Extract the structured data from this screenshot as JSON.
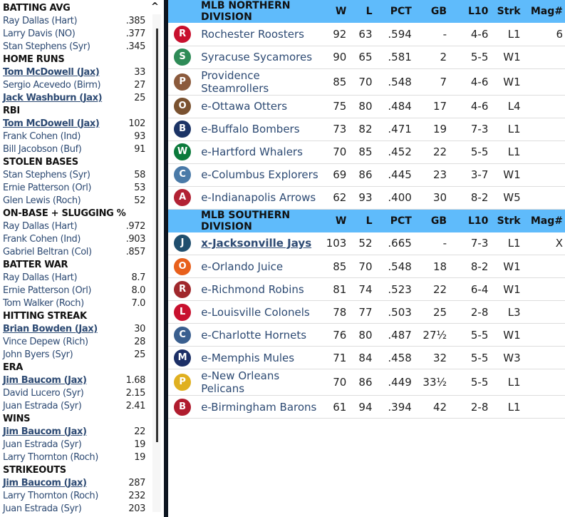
{
  "leaders": [
    {
      "category": "BATTING AVG",
      "rows": [
        {
          "name": "Ray Dallas (Hart)",
          "value": ".385"
        },
        {
          "name": "Larry Davis (NO)",
          "value": ".377"
        },
        {
          "name": "Stan Stephens (Syr)",
          "value": ".345"
        }
      ]
    },
    {
      "category": "HOME RUNS",
      "rows": [
        {
          "name": "Tom McDowell (Jax)",
          "value": "33",
          "link": true
        },
        {
          "name": "Sergio Acevedo (Birm)",
          "value": "27"
        },
        {
          "name": "Jack Washburn (Jax)",
          "value": "25",
          "link": true
        }
      ]
    },
    {
      "category": "RBI",
      "rows": [
        {
          "name": "Tom McDowell (Jax)",
          "value": "102",
          "link": true
        },
        {
          "name": "Frank Cohen (Ind)",
          "value": "93"
        },
        {
          "name": "Bill Jacobson (Buf)",
          "value": "91"
        }
      ]
    },
    {
      "category": "STOLEN BASES",
      "rows": [
        {
          "name": "Stan Stephens (Syr)",
          "value": "58"
        },
        {
          "name": "Ernie Patterson (Orl)",
          "value": "53"
        },
        {
          "name": "Glen Lewis (Roch)",
          "value": "52"
        }
      ]
    },
    {
      "category": "ON-BASE + SLUGGING %",
      "rows": [
        {
          "name": "Ray Dallas (Hart)",
          "value": ".972"
        },
        {
          "name": "Frank Cohen (Ind)",
          "value": ".903"
        },
        {
          "name": "Gabriel Beltran (Col)",
          "value": ".857"
        }
      ]
    },
    {
      "category": "BATTER WAR",
      "rows": [
        {
          "name": "Ray Dallas (Hart)",
          "value": "8.7"
        },
        {
          "name": "Ernie Patterson (Orl)",
          "value": "8.0"
        },
        {
          "name": "Tom Walker (Roch)",
          "value": "7.0"
        }
      ]
    },
    {
      "category": "HITTING STREAK",
      "rows": [
        {
          "name": "Brian Bowden (Jax)",
          "value": "30",
          "link": true
        },
        {
          "name": "Vince Depew (Rich)",
          "value": "28"
        },
        {
          "name": "John Byers (Syr)",
          "value": "25"
        }
      ]
    },
    {
      "category": "ERA",
      "rows": [
        {
          "name": "Jim Baucom (Jax)",
          "value": "1.68",
          "link": true
        },
        {
          "name": "David Lucero (Syr)",
          "value": "2.15"
        },
        {
          "name": "Juan Estrada (Syr)",
          "value": "2.41"
        }
      ]
    },
    {
      "category": "WINS",
      "rows": [
        {
          "name": "Jim Baucom (Jax)",
          "value": "22",
          "link": true
        },
        {
          "name": "Juan Estrada (Syr)",
          "value": "19"
        },
        {
          "name": "Larry Thornton (Roch)",
          "value": "19"
        }
      ]
    },
    {
      "category": "STRIKEOUTS",
      "rows": [
        {
          "name": "Jim Baucom (Jax)",
          "value": "287",
          "link": true
        },
        {
          "name": "Larry Thornton (Roch)",
          "value": "232"
        },
        {
          "name": "Juan Estrada (Syr)",
          "value": "203"
        }
      ]
    }
  ],
  "scroll_up_icon": "^",
  "columns": [
    "W",
    "L",
    "PCT",
    "GB",
    "L10",
    "Strk",
    "Mag#"
  ],
  "divisions": [
    {
      "title": "MLB NORTHERN DIVISION",
      "teams": [
        {
          "name": "Rochester Roosters",
          "w": "92",
          "l": "63",
          "pct": ".594",
          "gb": "-",
          "l10": "4-6",
          "strk": "L1",
          "mag": "6",
          "color": "#c8102e",
          "logo": "R"
        },
        {
          "name": "Syracuse Sycamores",
          "w": "90",
          "l": "65",
          "pct": ".581",
          "gb": "2",
          "l10": "5-5",
          "strk": "W1",
          "mag": "",
          "color": "#2e8b57",
          "logo": "S"
        },
        {
          "name": "Providence Steamrollers",
          "w": "85",
          "l": "70",
          "pct": ".548",
          "gb": "7",
          "l10": "4-6",
          "strk": "W1",
          "mag": "",
          "color": "#8b5a3c",
          "logo": "P"
        },
        {
          "name": "e-Ottawa Otters",
          "w": "75",
          "l": "80",
          "pct": ".484",
          "gb": "17",
          "l10": "4-6",
          "strk": "L4",
          "mag": "",
          "color": "#7a5230",
          "logo": "O"
        },
        {
          "name": "e-Buffalo Bombers",
          "w": "73",
          "l": "82",
          "pct": ".471",
          "gb": "19",
          "l10": "7-3",
          "strk": "L1",
          "mag": "",
          "color": "#1c3466",
          "logo": "B"
        },
        {
          "name": "e-Hartford Whalers",
          "w": "70",
          "l": "85",
          "pct": ".452",
          "gb": "22",
          "l10": "5-5",
          "strk": "L1",
          "mag": "",
          "color": "#0b7a3b",
          "logo": "W"
        },
        {
          "name": "e-Columbus Explorers",
          "w": "69",
          "l": "86",
          "pct": ".445",
          "gb": "23",
          "l10": "3-7",
          "strk": "W1",
          "mag": "",
          "color": "#4a7aa8",
          "logo": "C"
        },
        {
          "name": "e-Indianapolis Arrows",
          "w": "62",
          "l": "93",
          "pct": ".400",
          "gb": "30",
          "l10": "8-2",
          "strk": "W5",
          "mag": "",
          "color": "#b22234",
          "logo": "A"
        }
      ]
    },
    {
      "title": "MLB SOUTHERN DIVISION",
      "teams": [
        {
          "name": "x-Jacksonville Jays",
          "w": "103",
          "l": "52",
          "pct": ".665",
          "gb": "-",
          "l10": "7-3",
          "strk": "L1",
          "mag": "X",
          "color": "#1f4e6e",
          "logo": "J",
          "link": true
        },
        {
          "name": "e-Orlando Juice",
          "w": "85",
          "l": "70",
          "pct": ".548",
          "gb": "18",
          "l10": "8-2",
          "strk": "W1",
          "mag": "",
          "color": "#e8601c",
          "logo": "O"
        },
        {
          "name": "e-Richmond Robins",
          "w": "81",
          "l": "74",
          "pct": ".523",
          "gb": "22",
          "l10": "6-4",
          "strk": "W1",
          "mag": "",
          "color": "#a0282c",
          "logo": "R"
        },
        {
          "name": "e-Louisville Colonels",
          "w": "78",
          "l": "77",
          "pct": ".503",
          "gb": "25",
          "l10": "2-8",
          "strk": "L3",
          "mag": "",
          "color": "#c8102e",
          "logo": "L"
        },
        {
          "name": "e-Charlotte Hornets",
          "w": "76",
          "l": "80",
          "pct": ".487",
          "gb": "27½",
          "l10": "5-5",
          "strk": "W1",
          "mag": "",
          "color": "#3a5f8f",
          "logo": "C"
        },
        {
          "name": "e-Memphis Mules",
          "w": "71",
          "l": "84",
          "pct": ".458",
          "gb": "32",
          "l10": "5-5",
          "strk": "W3",
          "mag": "",
          "color": "#1c2f66",
          "logo": "M"
        },
        {
          "name": "e-New Orleans Pelicans",
          "w": "70",
          "l": "86",
          "pct": ".449",
          "gb": "33½",
          "l10": "5-5",
          "strk": "L1",
          "mag": "",
          "color": "#e0b020",
          "logo": "P"
        },
        {
          "name": "e-Birmingham Barons",
          "w": "61",
          "l": "94",
          "pct": ".394",
          "gb": "42",
          "l10": "2-8",
          "strk": "L1",
          "mag": "",
          "color": "#b01c2e",
          "logo": "B"
        }
      ]
    }
  ]
}
